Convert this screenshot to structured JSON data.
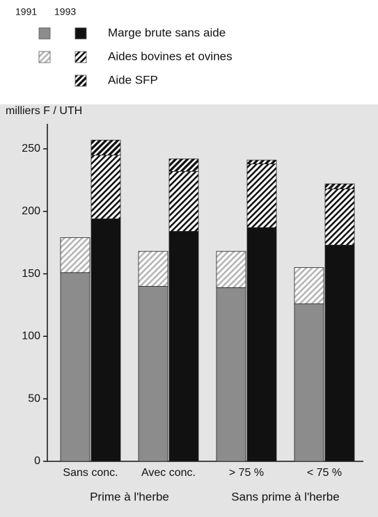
{
  "chart_data": {
    "type": "grouped-stacked-bar",
    "ylabel": "milliers F / UTH",
    "years": [
      "1991",
      "1993"
    ],
    "categories": [
      "Sans conc.",
      "Avec conc.",
      "> 75 %",
      "< 75 %"
    ],
    "groups": [
      {
        "label": "Prime à l'herbe",
        "span": 2
      },
      {
        "label": "Sans prime à l'herbe",
        "span": 2
      }
    ],
    "series": [
      {
        "name": "Marge brute sans aide",
        "hatch": false,
        "background": "#ffffff",
        "colors": [
          "#8c8c8c",
          "#111111"
        ],
        "values": [
          [
            151,
            140,
            139,
            126
          ],
          [
            194,
            184,
            187,
            173
          ]
        ]
      },
      {
        "name": "Aides bovines et ovines",
        "hatch": true,
        "background": "#ffffff",
        "colors": [
          "#b5b5b5",
          "#111111"
        ],
        "values": [
          [
            28,
            28,
            29,
            29
          ],
          [
            51,
            48,
            51,
            45
          ]
        ]
      },
      {
        "name": "Aide SFP",
        "hatch": true,
        "background": "#111111",
        "colors": [
          "#ffffff",
          "#ffffff"
        ],
        "values": [
          [
            null,
            null,
            null,
            null
          ],
          [
            12,
            10,
            3,
            4
          ]
        ]
      }
    ],
    "ylim": [
      0,
      270
    ],
    "yticks": [
      0,
      50,
      100,
      150,
      200,
      250
    ]
  }
}
